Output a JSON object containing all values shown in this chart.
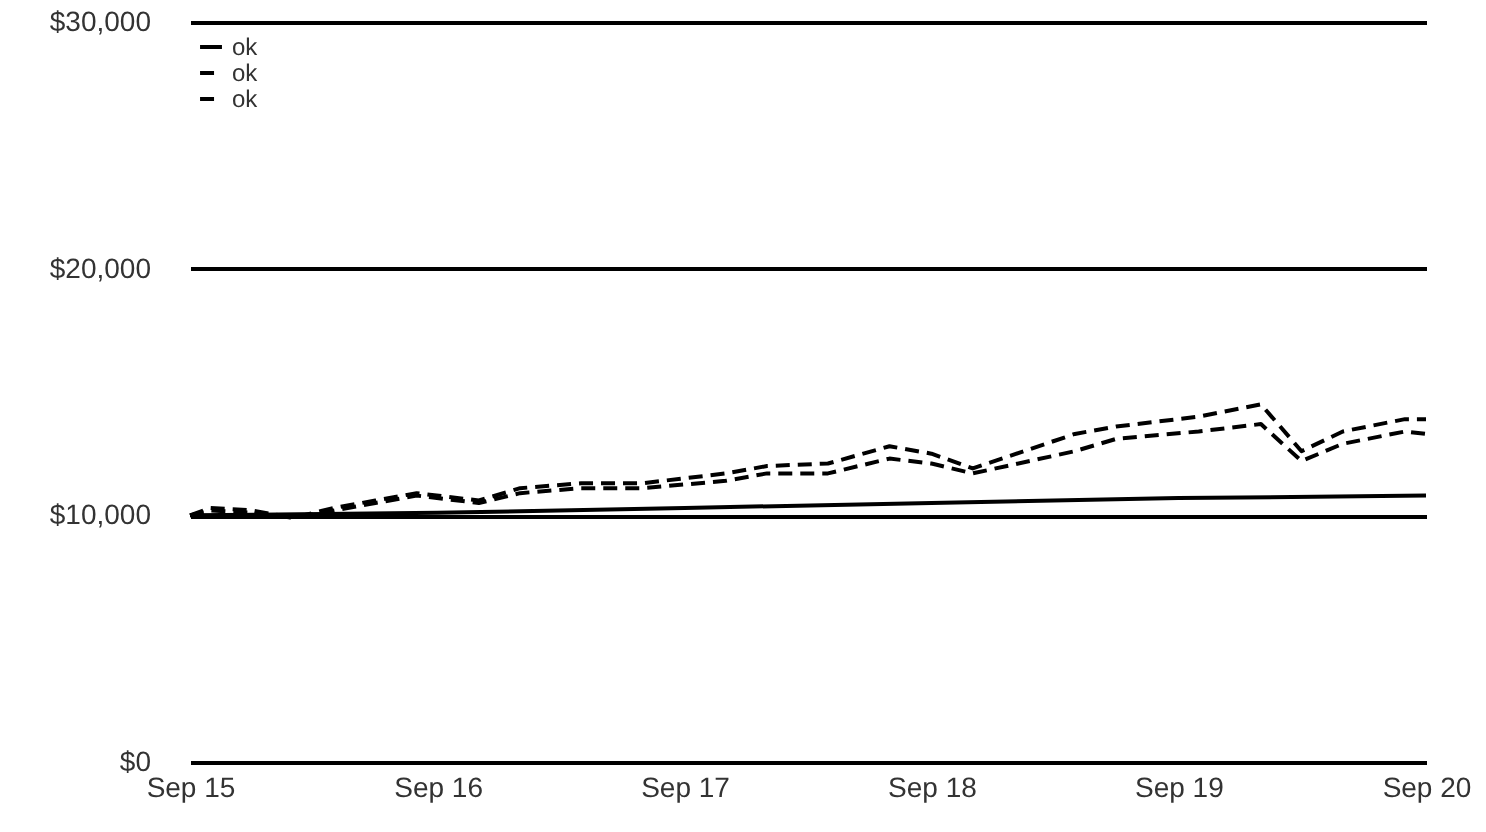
{
  "chart_data": {
    "type": "line",
    "x": [
      "2015-09",
      "2015-10",
      "2015-12",
      "2016-02",
      "2016-04",
      "2016-06",
      "2016-08",
      "2016-11",
      "2017-01",
      "2017-04",
      "2017-07",
      "2017-11",
      "2018-01",
      "2018-04",
      "2018-07",
      "2018-09",
      "2018-11",
      "2019-04",
      "2019-06",
      "2019-10",
      "2020-01",
      "2020-03",
      "2020-05",
      "2020-08",
      "2020-09"
    ],
    "series": [
      {
        "name": "ok",
        "color": "#000000",
        "line_style": "solid",
        "x": [
          "2015-09",
          "2016-09",
          "2017-09",
          "2018-09",
          "2019-09",
          "2020-09"
        ],
        "values": [
          10000,
          10100,
          10300,
          10500,
          10700,
          10800
        ]
      },
      {
        "name": "ok",
        "color": "#000000",
        "line_style": "dashed",
        "values": [
          10000,
          10300,
          10200,
          9900,
          10300,
          10600,
          10900,
          10600,
          11100,
          11300,
          11300,
          11700,
          12000,
          12100,
          12800,
          12500,
          11900,
          13300,
          13600,
          14000,
          14500,
          12600,
          13400,
          13900,
          13900
        ]
      },
      {
        "name": "ok",
        "color": "#000000",
        "line_style": "dashed",
        "values": [
          10000,
          10200,
          10100,
          9900,
          10200,
          10500,
          10800,
          10500,
          10900,
          11100,
          11100,
          11400,
          11700,
          11700,
          12300,
          12100,
          11700,
          12600,
          13100,
          13400,
          13700,
          12200,
          12900,
          13400,
          13300
        ]
      }
    ],
    "xlim": [
      "2015-09",
      "2020-09"
    ],
    "xticks": [
      {
        "value": "2015-09",
        "label": "Sep 15"
      },
      {
        "value": "2016-09",
        "label": "Sep 16"
      },
      {
        "value": "2017-09",
        "label": "Sep 17"
      },
      {
        "value": "2018-09",
        "label": "Sep 18"
      },
      {
        "value": "2019-09",
        "label": "Sep 19"
      },
      {
        "value": "2020-09",
        "label": "Sep 20"
      }
    ],
    "ylim": [
      0,
      30000
    ],
    "yticks": [
      {
        "value": 0,
        "label": "$0"
      },
      {
        "value": 10000,
        "label": "$10,000"
      },
      {
        "value": 20000,
        "label": "$20,000"
      },
      {
        "value": 30000,
        "label": "$30,000"
      }
    ],
    "grid": "y",
    "legend": "top left"
  }
}
